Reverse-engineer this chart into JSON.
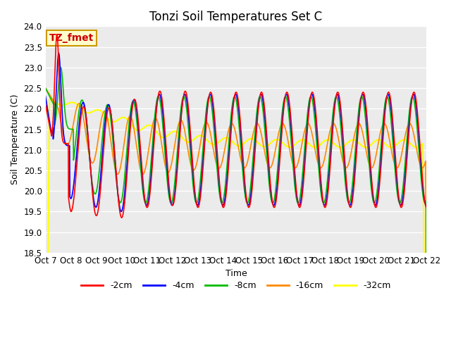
{
  "title": "Tonzi Soil Temperatures Set C",
  "xlabel": "Time",
  "ylabel": "Soil Temperature (C)",
  "ylim": [
    18.5,
    24.0
  ],
  "yticks": [
    18.5,
    19.0,
    19.5,
    20.0,
    20.5,
    21.0,
    21.5,
    22.0,
    22.5,
    23.0,
    23.5,
    24.0
  ],
  "n_days": 15,
  "colors": {
    "-2cm": "#ff0000",
    "-4cm": "#0000ff",
    "-8cm": "#00bb00",
    "-16cm": "#ff8800",
    "-32cm": "#ffff00"
  },
  "legend_labels": [
    "-2cm",
    "-4cm",
    "-8cm",
    "-16cm",
    "-32cm"
  ],
  "annotation_text": "TZ_fmet",
  "annotation_bg": "#ffffcc",
  "annotation_border": "#cc9900",
  "plot_bg": "#ebebeb",
  "title_fontsize": 12,
  "label_fontsize": 9,
  "tick_fontsize": 8.5
}
